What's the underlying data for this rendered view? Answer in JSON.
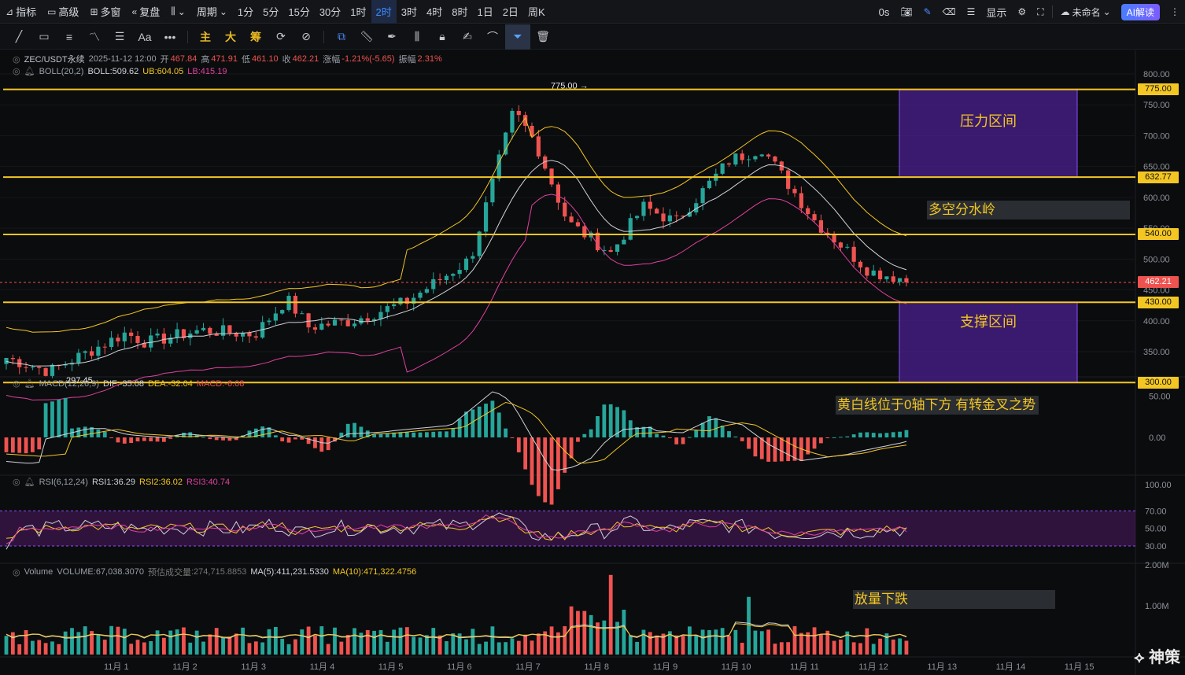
{
  "toolbar": {
    "items": [
      {
        "icon": "indicator-icon",
        "label": "指标"
      },
      {
        "icon": "advanced-icon",
        "label": "高级"
      },
      {
        "icon": "multi-window-icon",
        "label": "多窗"
      },
      {
        "icon": "replay-icon",
        "label": "复盘"
      }
    ],
    "chart_type_icon": "candle-type-icon",
    "period_label": "周期",
    "timeframes": [
      "1分",
      "5分",
      "15分",
      "30分",
      "1时",
      "2时",
      "3时",
      "4时",
      "8时",
      "1日",
      "2日",
      "周K"
    ],
    "active_timeframe": "2时",
    "countdown": "0s",
    "display_label": "显示",
    "layout_name": "未命名",
    "ai_label": "AI解读"
  },
  "drawing_tools": {
    "left": [
      "trend-line-icon",
      "rectangle-icon",
      "parallel-channel-icon",
      "wave-icon",
      "fib-icon",
      "text-icon",
      "more-icon"
    ],
    "gold": [
      "主",
      "大",
      "筹"
    ],
    "right": [
      "cycle-icon",
      "no-draw-icon",
      "copy-icon",
      "ruler-icon",
      "pen-icon",
      "bar-stats-icon",
      "lock-icon",
      "note-icon",
      "magnet-icon",
      "filter-icon",
      "trash-icon"
    ],
    "active": "filter-icon"
  },
  "legends": {
    "main": {
      "symbol": "ZEC/USDT永续",
      "datetime": "2025-11-12 12:00",
      "open_k": "开",
      "open": "467.84",
      "high_k": "高",
      "high": "471.91",
      "low_k": "低",
      "low": "461.10",
      "close_k": "收",
      "close": "462.21",
      "change_k": "涨幅",
      "change": "-1.21%(-5.65)",
      "amp_k": "振幅",
      "amp": "2.31%"
    },
    "boll": {
      "name": "BOLL(20,2)",
      "boll": "BOLL:509.62",
      "ub": "UB:604.05",
      "lb": "LB:415.19"
    },
    "macd": {
      "name": "MACD(12,26,9)",
      "dif": "DIF:-35.08",
      "dea": "DEA:-32.04",
      "macd": "MACD:-6.08"
    },
    "rsi": {
      "name": "RSI(6,12,24)",
      "rsi1": "RSI1:36.29",
      "rsi2": "RSI2:36.02",
      "rsi3": "RSI3:40.74"
    },
    "volume": {
      "name": "Volume",
      "vol": "VOLUME:67,038.3070",
      "est_k": "预估成交量",
      "est": ":274,715.8853",
      "ma5": "MA(5):411,231.5330",
      "ma10": "MA(10):471,322.4756"
    }
  },
  "price_axis": [
    "800.00",
    "750.00",
    "700.00",
    "650.00",
    "600.00",
    "550.00",
    "500.00",
    "450.00",
    "400.00",
    "350.00"
  ],
  "macd_axis": [
    "50.00",
    "0.00"
  ],
  "rsi_axis": [
    "100.00",
    "70.00",
    "50.00",
    "30.00"
  ],
  "vol_axis": [
    "2.00M",
    "1.00M"
  ],
  "time_axis": [
    "11月 1",
    "11月 2",
    "11月 3",
    "11月 4",
    "11月 5",
    "11月 6",
    "11月 7",
    "11月 8",
    "11月 9",
    "11月 10",
    "11月 11",
    "11月 12",
    "11月 13",
    "11月 14",
    "11月 15"
  ],
  "levels": [
    {
      "label": "775.00",
      "value": 775
    },
    {
      "label": "632.77",
      "value": 632.77
    },
    {
      "label": "540.00",
      "value": 540
    },
    {
      "label": "430.00",
      "value": 430
    },
    {
      "label": "300.00",
      "value": 300
    }
  ],
  "current_price": {
    "label": "462.21",
    "value": 462.21
  },
  "high_marker": "775.00 →",
  "low_marker": "← 297.45",
  "zones": {
    "resistance": "压力区间",
    "support": "支撑区间"
  },
  "annotations": {
    "bull_bear": "多空分水岭",
    "macd_note": "黄白线位于0轴下方 有转金叉之势",
    "volume_note": "放量下跌"
  },
  "watermark": "神策",
  "colors": {
    "up": "#26a69a",
    "down": "#ef5350",
    "level": "#f3c623",
    "zone_fill": "#4b1f8f",
    "zone_border": "#8a4fff",
    "boll_mid": "#cfd3d9",
    "boll_ub": "#f3c623",
    "boll_lb": "#e040a0",
    "price_line": "#ef5350"
  }
}
